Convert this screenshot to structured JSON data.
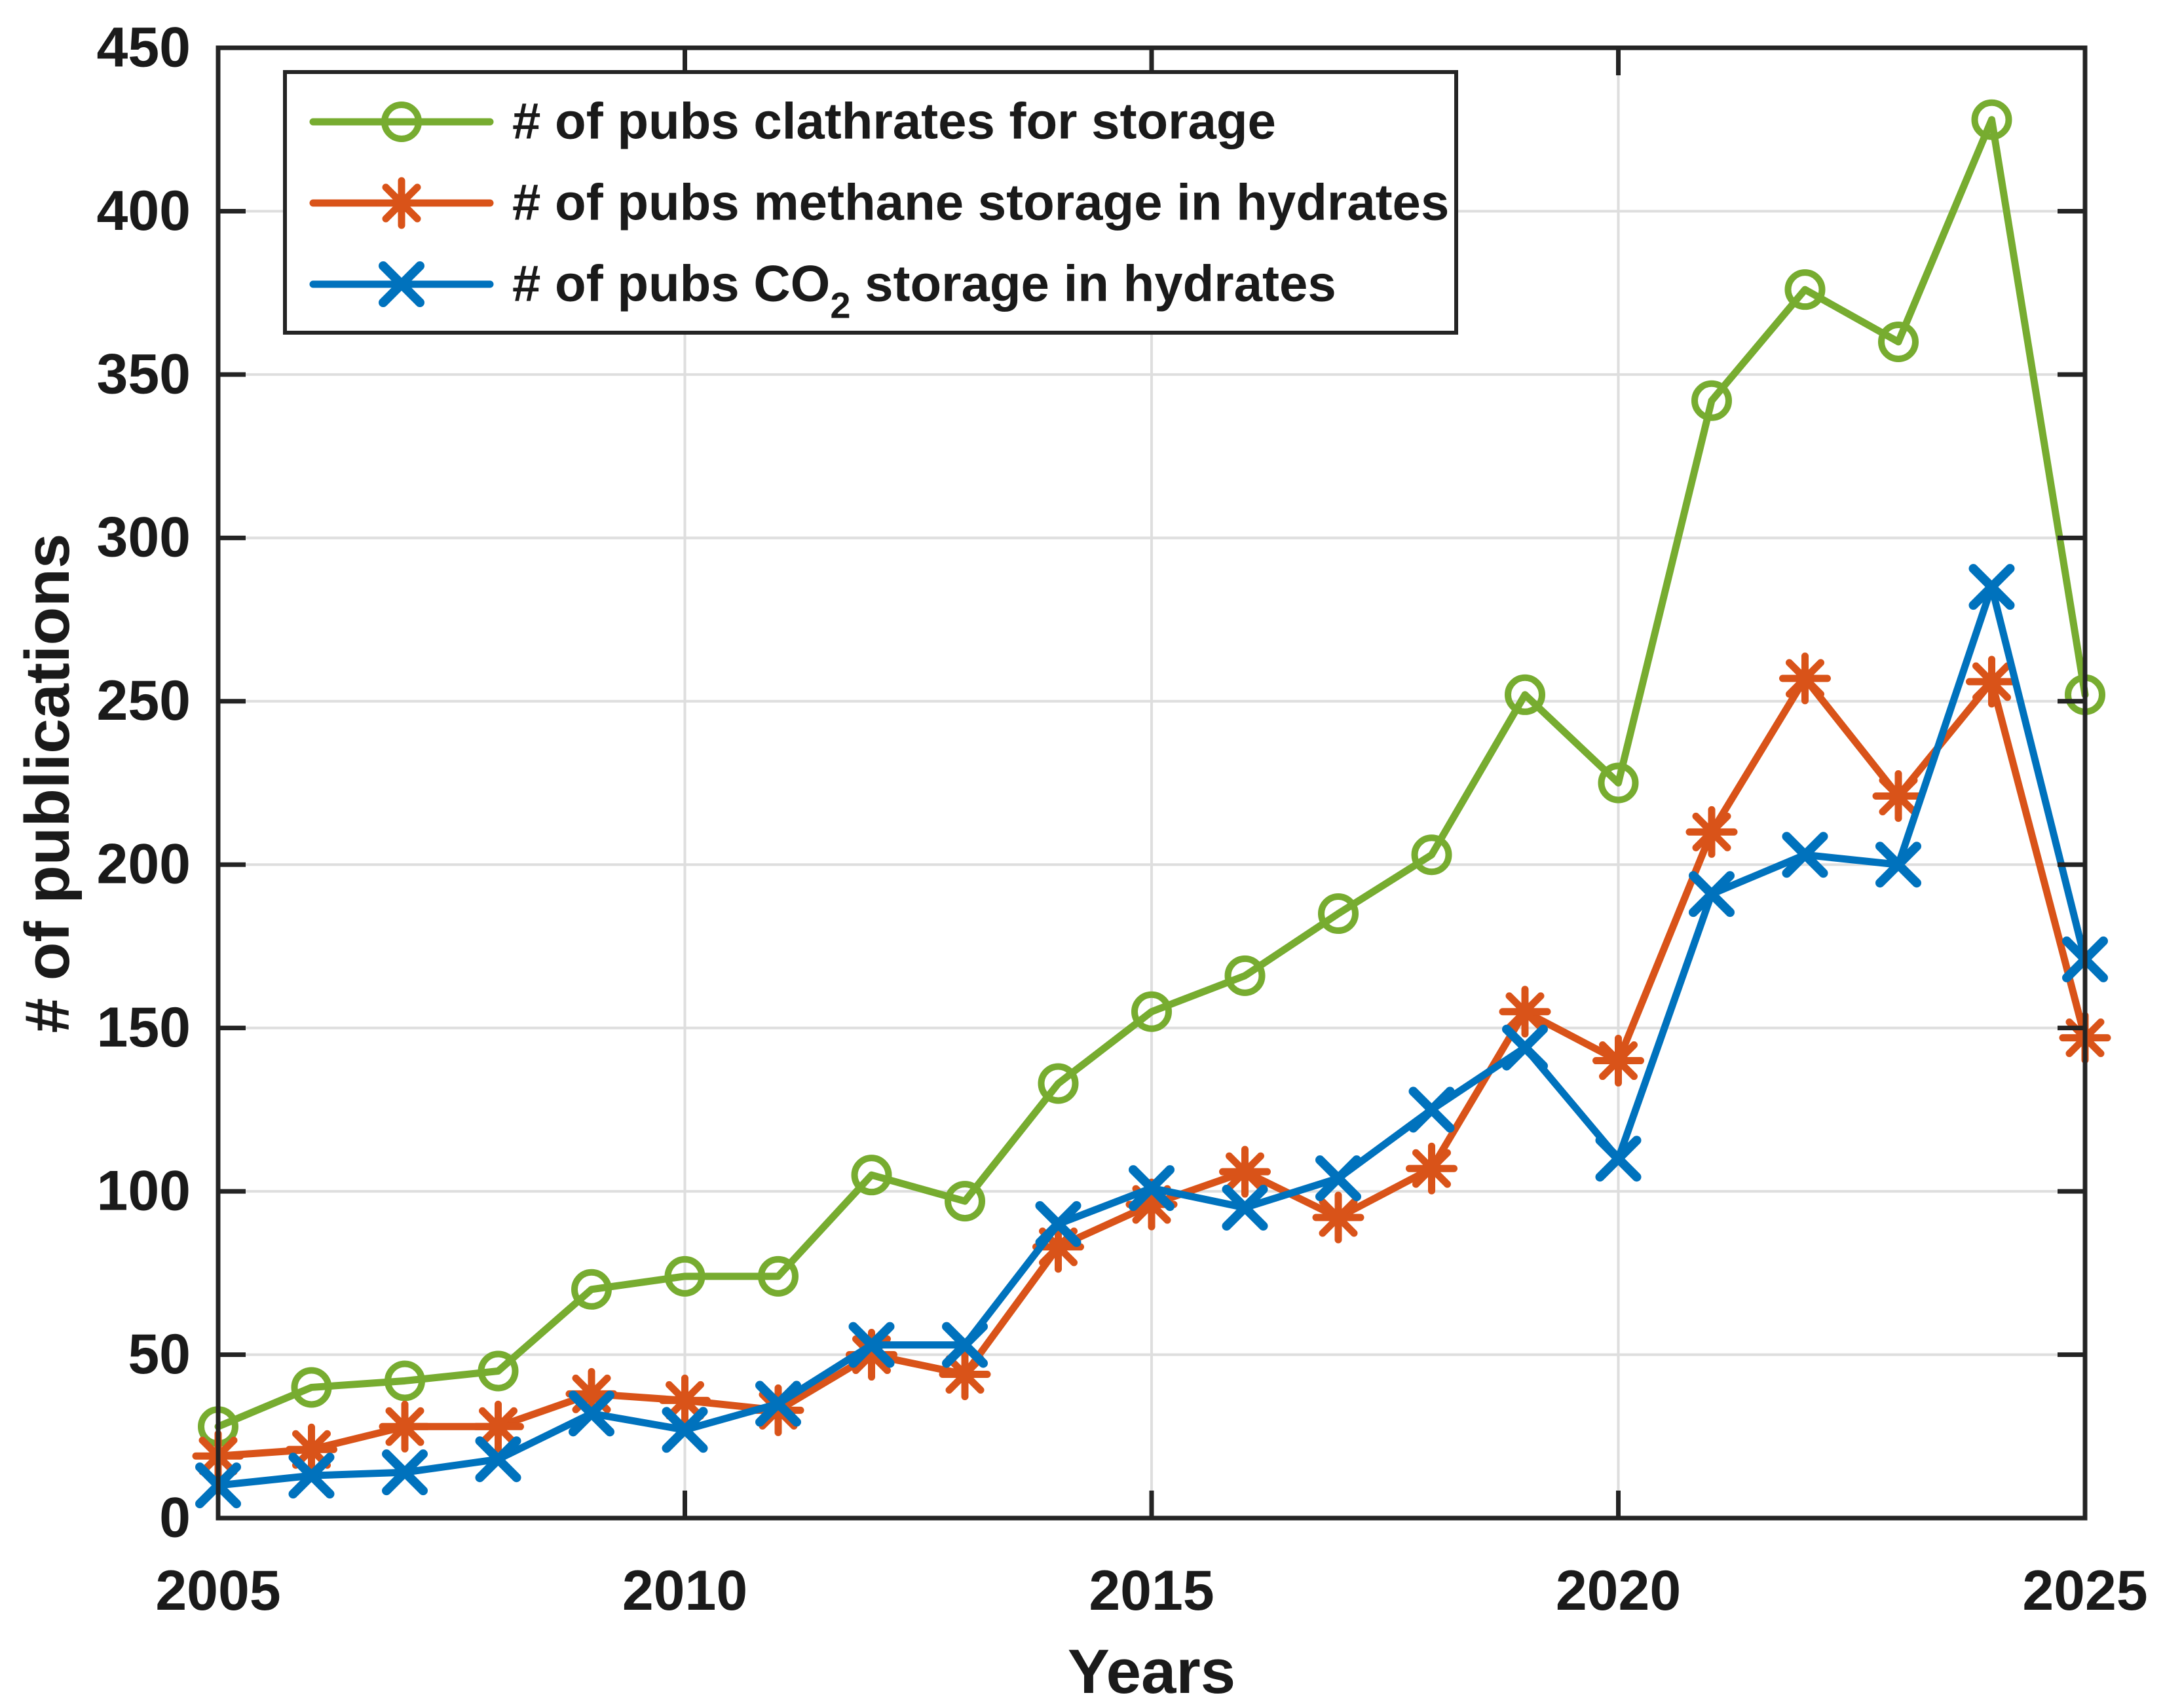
{
  "figure": {
    "background": "#ffffff"
  },
  "styles": {
    "grid_color": "#dedede",
    "axis_color": "#242424",
    "tick_label_color": "#1a1a1a",
    "legend_border_color": "#242424",
    "legend_background": "#ffffff"
  },
  "chart_data": {
    "type": "line",
    "title": "",
    "xlabel": "Years",
    "ylabel": "# of publications",
    "xlim": [
      2005,
      2025
    ],
    "ylim": [
      0,
      450
    ],
    "x_ticks": [
      2005,
      2010,
      2015,
      2020,
      2025
    ],
    "y_ticks": [
      0,
      50,
      100,
      150,
      200,
      250,
      300,
      350,
      400,
      450
    ],
    "grid": true,
    "legend_position": "top-left",
    "x": [
      2005,
      2006,
      2007,
      2008,
      2009,
      2010,
      2011,
      2012,
      2013,
      2014,
      2015,
      2016,
      2017,
      2018,
      2019,
      2020,
      2021,
      2022,
      2023,
      2024,
      2025
    ],
    "series": [
      {
        "name": "clathrates-for-storage",
        "legend_label_parts": {
          "pre": "# of pubs clathrates for storage",
          "sub": "",
          "post": ""
        },
        "color": "#77AC30",
        "marker": "circle",
        "values": [
          28,
          40,
          42,
          45,
          70,
          74,
          74,
          105,
          97,
          133,
          155,
          166,
          185,
          203,
          252,
          225,
          342,
          376,
          360,
          428,
          252
        ]
      },
      {
        "name": "methane-storage-in-hydrates",
        "legend_label_parts": {
          "pre": "# of pubs methane storage in hydrates",
          "sub": "",
          "post": ""
        },
        "color": "#D95319",
        "marker": "asterisk",
        "values": [
          19,
          21,
          28,
          28,
          38,
          36,
          33,
          50,
          44,
          83,
          96,
          106,
          92,
          107,
          155,
          140,
          210,
          257,
          221,
          256,
          147
        ]
      },
      {
        "name": "co2-storage-in-hydrates",
        "legend_label_parts": {
          "pre": "# of pubs CO",
          "sub": "2",
          "post": " storage in hydrates"
        },
        "color": "#0072BD",
        "marker": "x",
        "values": [
          10,
          13,
          14,
          18,
          32,
          27,
          35,
          53,
          53,
          90,
          101,
          95,
          104,
          125,
          144,
          110,
          191,
          203,
          200,
          285,
          171
        ]
      }
    ]
  }
}
